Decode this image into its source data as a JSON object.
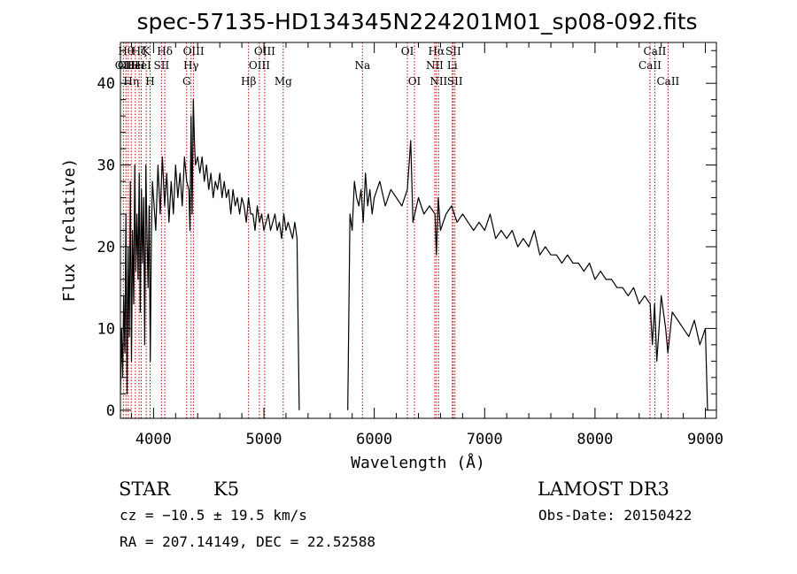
{
  "chart_data": {
    "type": "line",
    "title": "spec-57135-HD134345N224201M01_sp08-092.fits",
    "xlabel": "Wavelength (Å)",
    "ylabel": "Flux (relative)",
    "xlim": [
      3700,
      9100
    ],
    "ylim": [
      -1,
      45
    ],
    "xticks": [
      4000,
      5000,
      6000,
      7000,
      8000,
      9000
    ],
    "yticks": [
      0,
      10,
      20,
      30,
      40
    ],
    "series": [
      {
        "name": "spectrum",
        "color": "#000000",
        "segments": [
          {
            "x": [
              3700,
              3710,
              3720,
              3730,
              3740,
              3750,
              3760,
              3770,
              3780,
              3790,
              3800,
              3810,
              3820,
              3830,
              3840,
              3850,
              3860,
              3870,
              3880,
              3890,
              3900,
              3910,
              3920,
              3930,
              3940,
              3950,
              3960,
              3970,
              3980,
              3990,
              4000,
              4020,
              4040,
              4060,
              4080,
              4100,
              4120,
              4140,
              4160,
              4180,
              4200,
              4220,
              4240,
              4260,
              4280,
              4300,
              4320,
              4330,
              4340,
              4350,
              4360,
              4370,
              4380,
              4400,
              4420,
              4440,
              4460,
              4480,
              4500,
              4520,
              4540,
              4560,
              4580,
              4600,
              4620,
              4640,
              4660,
              4680,
              4700,
              4720,
              4740,
              4760,
              4780,
              4800,
              4820,
              4840,
              4860,
              4880,
              4900,
              4920,
              4940,
              4960,
              4980,
              5000,
              5020,
              5040,
              5060,
              5080,
              5100,
              5120,
              5140,
              5160,
              5180,
              5200,
              5220,
              5240,
              5260,
              5280,
              5300,
              5310,
              5320
            ],
            "y": [
              2,
              10,
              4,
              14,
              7,
              24,
              2,
              20,
              9,
              28,
              6,
              22,
              13,
              30,
              17,
              24,
              16,
              29,
              12,
              27,
              18,
              26,
              8,
              30,
              22,
              15,
              25,
              6,
              21,
              28,
              26,
              22,
              30,
              24,
              31,
              25,
              29,
              23,
              28,
              24,
              30,
              26,
              29,
              25,
              31,
              28,
              27,
              22,
              36,
              24,
              38,
              33,
              30,
              31,
              29,
              31,
              28,
              30,
              27,
              29,
              26,
              28,
              27,
              29,
              26,
              28,
              26,
              27,
              24,
              27,
              25,
              26,
              24,
              26,
              25,
              23,
              26,
              24,
              24,
              22,
              25,
              23,
              24,
              22,
              23,
              24,
              22,
              23,
              24,
              22,
              23,
              21,
              24,
              22,
              23,
              22,
              21,
              23,
              21,
              10,
              0
            ]
          },
          {
            "x": [
              5760,
              5780,
              5800,
              5820,
              5840,
              5860,
              5880,
              5900,
              5920,
              5940,
              5960,
              5980,
              6000,
              6050,
              6100,
              6150,
              6200,
              6250,
              6300,
              6330,
              6350,
              6400,
              6450,
              6500,
              6550,
              6563,
              6580,
              6600,
              6650,
              6700,
              6750,
              6800,
              6850,
              6900,
              6950,
              7000,
              7050,
              7100,
              7150,
              7200,
              7250,
              7300,
              7350,
              7400,
              7450,
              7500,
              7550,
              7600,
              7650,
              7700,
              7750,
              7800,
              7850,
              7900,
              7950,
              8000,
              8050,
              8100,
              8150,
              8200,
              8250,
              8300,
              8350,
              8400,
              8450,
              8500,
              8520,
              8540,
              8560,
              8600,
              8640,
              8660,
              8700,
              8750,
              8800,
              8850,
              8900,
              8950,
              9000,
              9020
            ],
            "y": [
              0,
              24,
              22,
              28,
              26,
              25,
              27,
              23,
              29,
              25,
              27,
              24,
              26,
              28,
              25,
              27,
              26,
              25,
              27,
              33,
              23,
              26,
              24,
              25,
              24,
              19,
              26,
              22,
              24,
              25,
              23,
              24,
              23,
              22,
              23,
              22,
              24,
              21,
              22,
              21,
              22,
              20,
              21,
              20,
              22,
              19,
              20,
              19,
              19,
              18,
              19,
              18,
              18,
              17,
              18,
              16,
              17,
              16,
              16,
              15,
              15,
              14,
              15,
              13,
              14,
              13,
              8,
              13,
              6,
              14,
              10,
              7,
              12,
              11,
              10,
              9,
              11,
              8,
              10,
              0
            ]
          }
        ]
      }
    ],
    "annotations": [
      {
        "x": 3727,
        "label": "OII",
        "row": 2
      },
      {
        "x": 3750,
        "label": "Hθ",
        "row": 1
      },
      {
        "x": 3771,
        "label": "OIII",
        "row": 2
      },
      {
        "x": 3798,
        "label": "Hη",
        "row": 3
      },
      {
        "x": 3835,
        "label": "HeI",
        "row": 2
      },
      {
        "x": 3869,
        "label": "Hζ",
        "row": 1
      },
      {
        "x": 3889,
        "label": "HeI",
        "row": 2
      },
      {
        "x": 3934,
        "label": "K",
        "row": 1
      },
      {
        "x": 3969,
        "label": "H",
        "row": 3
      },
      {
        "x": 4072,
        "label": "SII",
        "row": 2
      },
      {
        "x": 4102,
        "label": "Hδ",
        "row": 1
      },
      {
        "x": 4300,
        "label": "G",
        "row": 3
      },
      {
        "x": 4340,
        "label": "Hγ",
        "row": 2
      },
      {
        "x": 4363,
        "label": "OIII",
        "row": 1
      },
      {
        "x": 4861,
        "label": "Hβ",
        "row": 3
      },
      {
        "x": 4959,
        "label": "OIII",
        "row": 2
      },
      {
        "x": 5007,
        "label": "OIII",
        "row": 1
      },
      {
        "x": 5175,
        "label": "Mg",
        "row": 3
      },
      {
        "x": 5893,
        "label": "Na",
        "row": 2
      },
      {
        "x": 6300,
        "label": "OI",
        "row": 1
      },
      {
        "x": 6364,
        "label": "OI",
        "row": 3
      },
      {
        "x": 6548,
        "label": "NII",
        "row": 2
      },
      {
        "x": 6563,
        "label": "Hα",
        "row": 1
      },
      {
        "x": 6583,
        "label": "NII",
        "row": 3
      },
      {
        "x": 6707,
        "label": "Li",
        "row": 2
      },
      {
        "x": 6716,
        "label": "SII",
        "row": 1
      },
      {
        "x": 6731,
        "label": "SII",
        "row": 3
      },
      {
        "x": 8498,
        "label": "CaII",
        "row": 2
      },
      {
        "x": 8542,
        "label": "CaII",
        "row": 1
      },
      {
        "x": 8662,
        "label": "CaII",
        "row": 3
      }
    ]
  },
  "info": {
    "class": "STAR",
    "subclass": "K5",
    "survey": "LAMOST DR3",
    "redshift": "cz = −10.5 ± 19.5 km/s",
    "obs_date": "Obs-Date: 20150422",
    "coords": "RA = 207.14149, DEC =  22.52588"
  },
  "colors": {
    "line_marker": "#c00000",
    "spectrum": "#000000",
    "axis": "#000000"
  }
}
